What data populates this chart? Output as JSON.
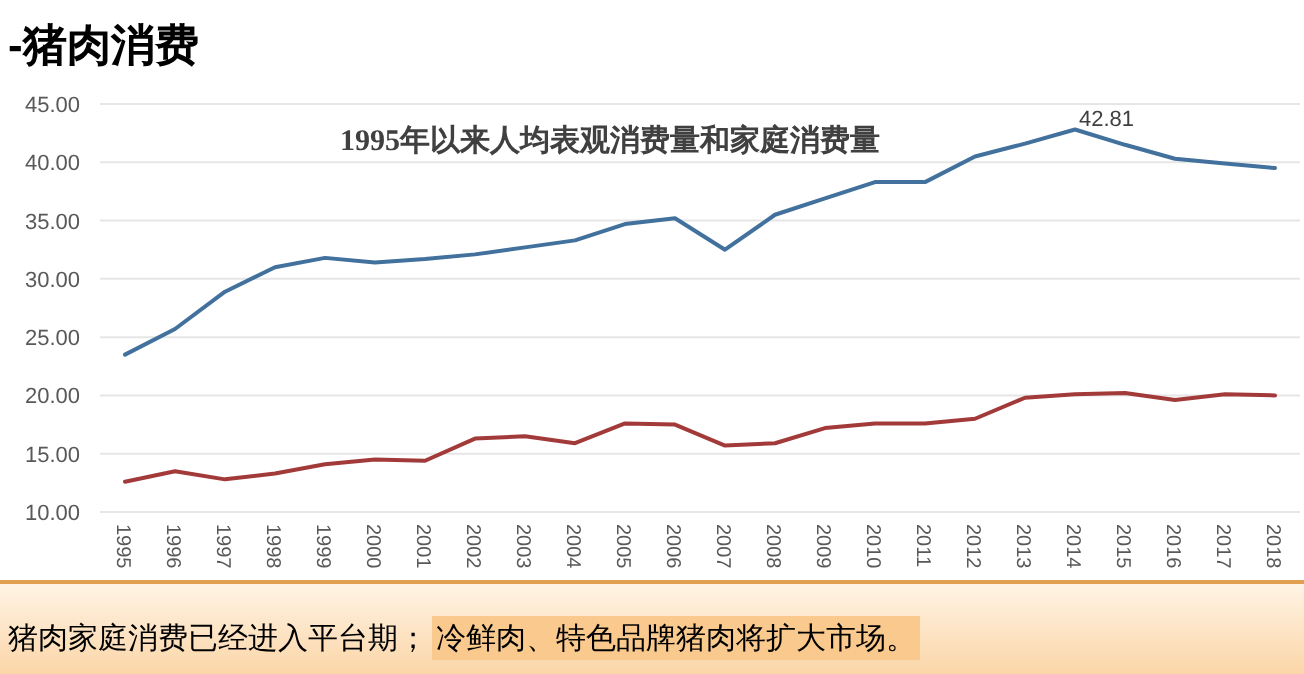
{
  "chart_data": {
    "type": "line",
    "title": "-猪肉消费",
    "subtitle": "1995年以来人均表观消费量和家庭消费量",
    "categories": [
      "1995",
      "1996",
      "1997",
      "1998",
      "1999",
      "2000",
      "2001",
      "2002",
      "2003",
      "2004",
      "2005",
      "2006",
      "2007",
      "2008",
      "2009",
      "2010",
      "2011",
      "2012",
      "2013",
      "2014",
      "2015",
      "2016",
      "2017",
      "2018"
    ],
    "series": [
      {
        "color": "#41719c",
        "values": [
          23.5,
          25.7,
          28.9,
          31.0,
          31.8,
          31.4,
          31.7,
          32.1,
          32.7,
          33.3,
          34.7,
          35.2,
          32.5,
          35.5,
          36.9,
          38.3,
          38.3,
          40.5,
          41.6,
          42.81,
          41.5,
          40.3,
          39.9,
          39.5
        ],
        "value_labels": [
          null,
          null,
          null,
          null,
          null,
          null,
          null,
          null,
          null,
          null,
          null,
          null,
          null,
          null,
          null,
          null,
          null,
          null,
          null,
          "42.81",
          null,
          null,
          null,
          null
        ]
      },
      {
        "color": "#a33a3a",
        "values": [
          12.6,
          13.5,
          12.8,
          13.3,
          14.1,
          14.5,
          14.4,
          16.3,
          16.5,
          15.9,
          17.6,
          17.5,
          15.7,
          15.9,
          17.2,
          17.6,
          17.6,
          18.0,
          19.8,
          20.1,
          20.2,
          19.6,
          20.1,
          20.0
        ]
      }
    ],
    "ylim": [
      10,
      45
    ],
    "yticks": [
      {
        "value": 10,
        "label": "10.00"
      },
      {
        "value": 15,
        "label": "15.00"
      },
      {
        "value": 20,
        "label": "20.00"
      },
      {
        "value": 25,
        "label": "25.00"
      },
      {
        "value": 30,
        "label": "30.00"
      },
      {
        "value": 35,
        "label": "35.00"
      },
      {
        "value": 40,
        "label": "40.00"
      },
      {
        "value": 45,
        "label": "45.00"
      }
    ],
    "grid": "y",
    "marker": "none",
    "line_style": "solid",
    "annotations": [
      "猪肉家庭消费已经进入平台期；",
      "冷鲜肉、特色品牌猪肉将扩大市场。"
    ]
  }
}
